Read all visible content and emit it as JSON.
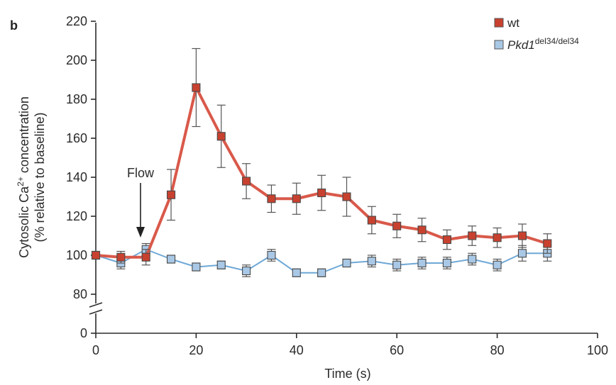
{
  "chart_data": {
    "type": "line",
    "panel_label": "b",
    "xlabel": "Time (s)",
    "ylabel_line1": "Cytosolic Ca",
    "ylabel_sup": "2+",
    "ylabel_line1_end": " concentration",
    "ylabel_line2": "(% relative to baseline)",
    "xlim": [
      0,
      100
    ],
    "ylim": [
      80,
      220
    ],
    "y_axis_break": true,
    "y_break_lower_tick": 0,
    "xticks": [
      0,
      20,
      40,
      60,
      80,
      100
    ],
    "yticks": [
      80,
      100,
      120,
      140,
      160,
      180,
      200,
      220
    ],
    "grid": false,
    "legend_position": "top-right",
    "annotation": {
      "text": "Flow",
      "x": 10
    },
    "series": [
      {
        "name": "wt",
        "color": "#d9594a",
        "marker_fill": "#c8412f",
        "x": [
          0,
          5,
          10,
          15,
          20,
          25,
          30,
          35,
          40,
          45,
          50,
          55,
          60,
          65,
          70,
          75,
          80,
          85,
          90
        ],
        "y": [
          100,
          99,
          99,
          131,
          186,
          161,
          138,
          129,
          129,
          132,
          130,
          118,
          115,
          113,
          108,
          110,
          109,
          110,
          106
        ],
        "err": [
          2,
          3,
          4,
          13,
          20,
          16,
          9,
          7,
          8,
          9,
          10,
          7,
          6,
          6,
          5,
          5,
          5,
          6,
          5
        ]
      },
      {
        "name_main": "Pkd1",
        "name_sup": "del34/del34",
        "color": "#6fa8d6",
        "marker_fill": "#a9c8e6",
        "x": [
          0,
          5,
          10,
          15,
          20,
          25,
          30,
          35,
          40,
          45,
          50,
          55,
          60,
          65,
          70,
          75,
          80,
          85,
          90
        ],
        "y": [
          100,
          96,
          103,
          98,
          94,
          95,
          92,
          100,
          91,
          91,
          96,
          97,
          95,
          96,
          96,
          98,
          95,
          101,
          101
        ],
        "err": [
          1,
          3,
          3,
          2,
          2,
          2,
          3,
          3,
          2,
          2,
          2,
          3,
          3,
          3,
          3,
          3,
          3,
          4,
          4
        ]
      }
    ]
  }
}
